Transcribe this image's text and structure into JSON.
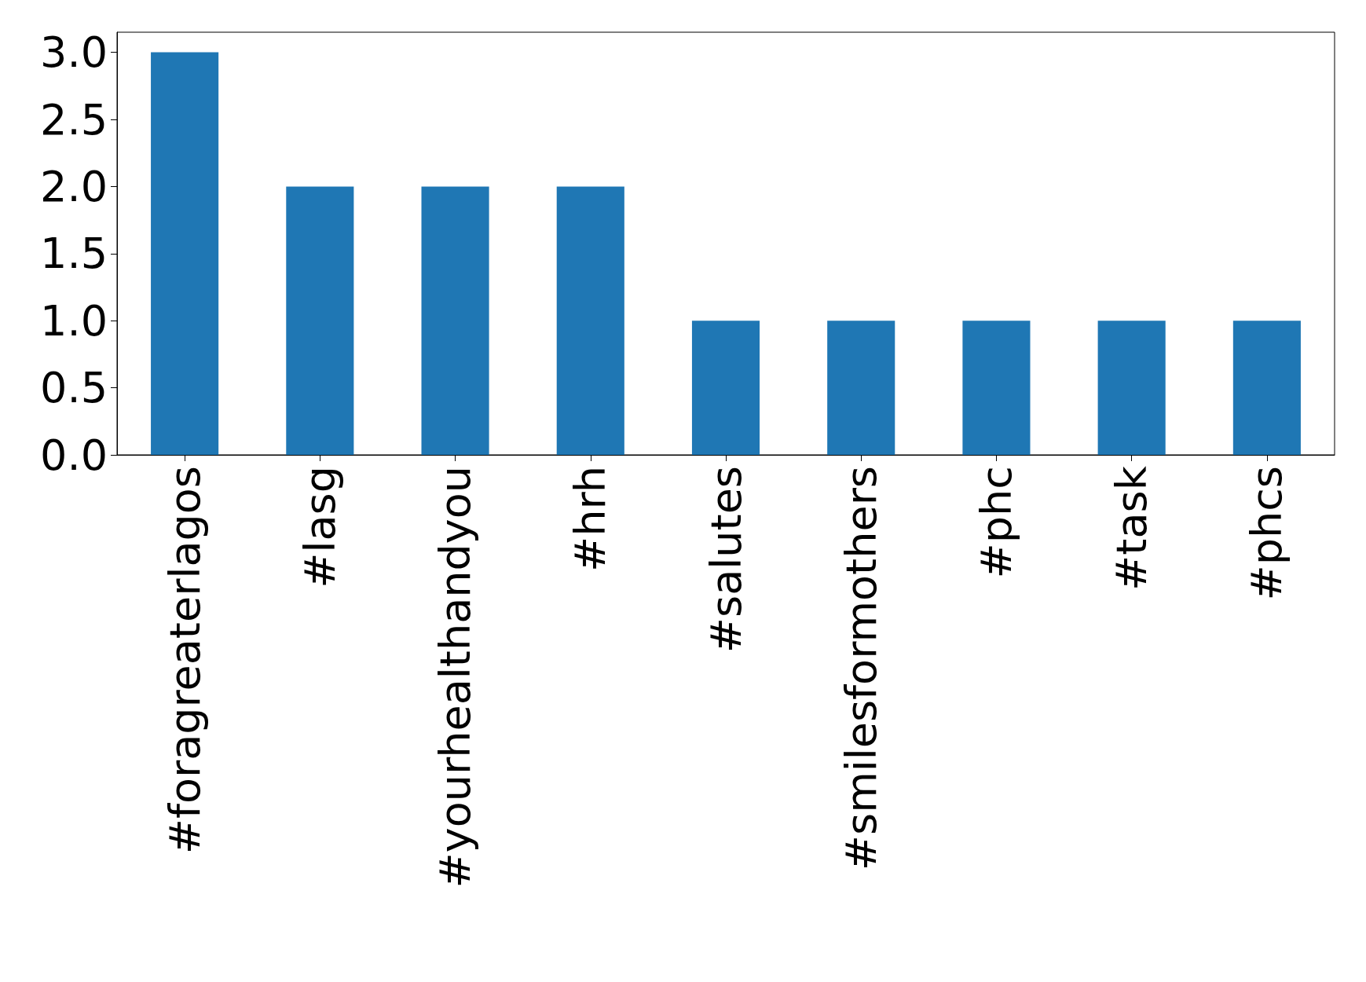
{
  "chart_data": {
    "type": "bar",
    "categories": [
      "#foragreaterlagos",
      "#lasg",
      "#yourhealthandyou",
      "#hrh",
      "#salutes",
      "#smilesformothers",
      "#phc",
      "#task",
      "#phcs"
    ],
    "values": [
      3,
      2,
      2,
      2,
      1,
      1,
      1,
      1,
      1
    ],
    "color": "#1f77b4",
    "ylim": [
      0,
      3.15
    ],
    "yticks": [
      {
        "value": 0,
        "label": "0.0"
      },
      {
        "value": 0.5,
        "label": "0.5"
      },
      {
        "value": 1,
        "label": "1.0"
      },
      {
        "value": 1.5,
        "label": "1.5"
      },
      {
        "value": 2,
        "label": "2.0"
      },
      {
        "value": 2.5,
        "label": "2.5"
      },
      {
        "value": 3,
        "label": "3.0"
      }
    ],
    "grid": false
  }
}
